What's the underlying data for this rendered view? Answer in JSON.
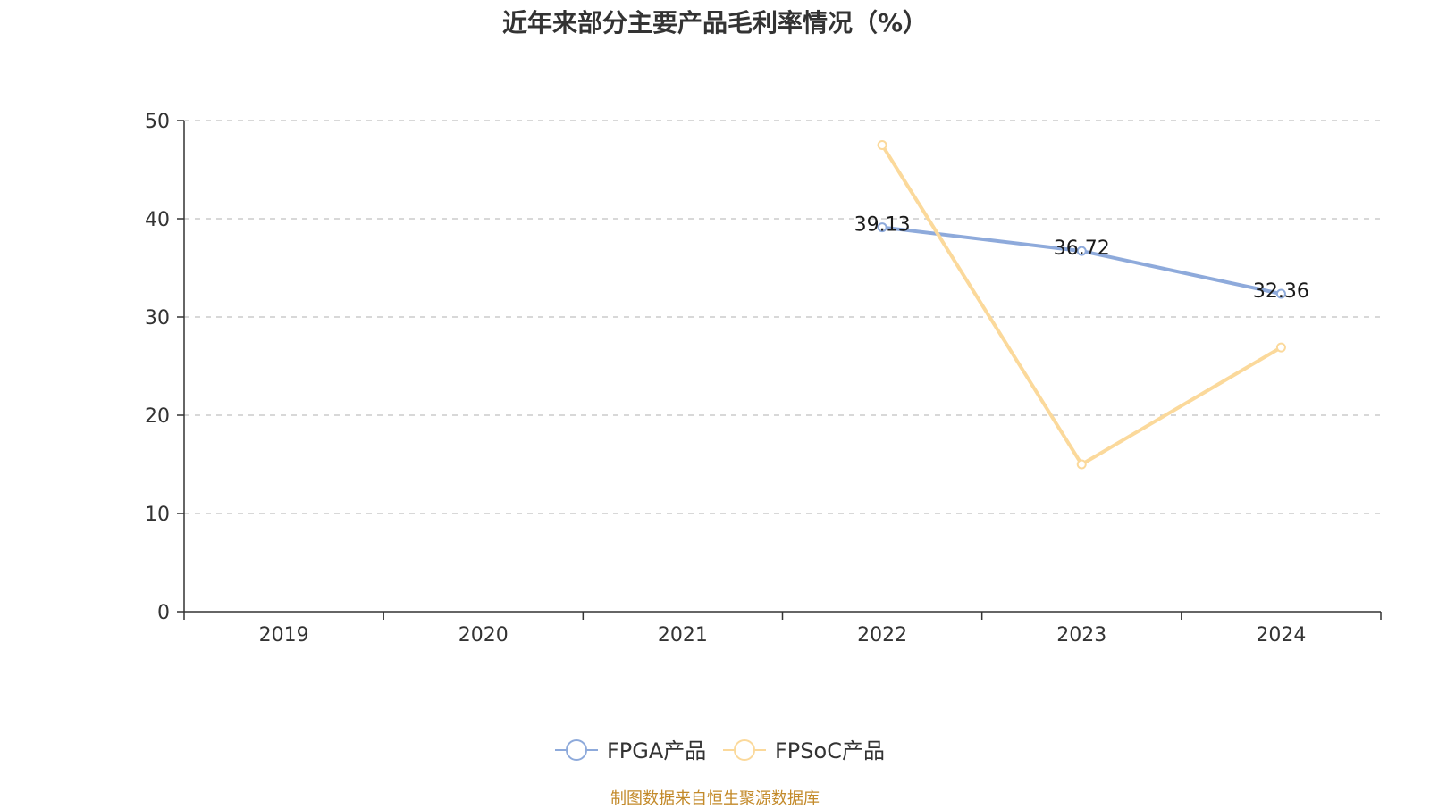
{
  "chart_data": {
    "type": "line",
    "title": "近年来部分主要产品毛利率情况（%）",
    "categories": [
      "2019",
      "2020",
      "2021",
      "2022",
      "2023",
      "2024"
    ],
    "ylim": [
      0,
      50
    ],
    "yticks": [
      0,
      10,
      20,
      30,
      40,
      50
    ],
    "grid": true,
    "legend_position": "bottom",
    "series": [
      {
        "name": "FPGA产品",
        "color": "#8eaadb",
        "values": [
          null,
          null,
          null,
          39.13,
          36.72,
          32.36
        ],
        "labels": [
          "",
          "",
          "",
          "39.13",
          "36.72",
          "32.36"
        ]
      },
      {
        "name": "FPSoC产品",
        "color": "#fbd99b",
        "values": [
          null,
          null,
          null,
          47.5,
          15.0,
          26.9
        ],
        "labels": [
          "",
          "",
          "",
          "",
          "",
          ""
        ]
      }
    ]
  },
  "source": "制图数据来自恒生聚源数据库"
}
